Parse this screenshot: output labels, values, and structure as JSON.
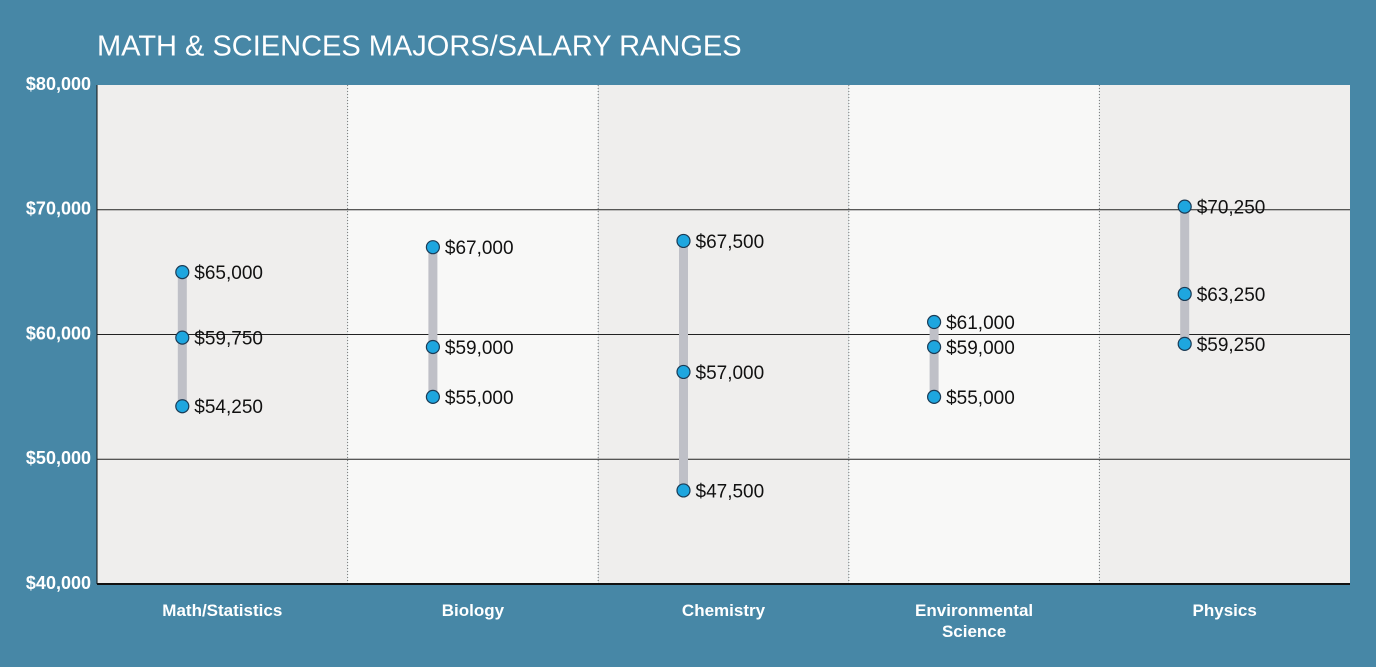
{
  "chart_data": {
    "type": "range",
    "title": "MATH & SCIENCES MAJORS/SALARY RANGES",
    "categories": [
      "Math/Statistics",
      "Biology",
      "Chemistry",
      "Environmental Science",
      "Physics"
    ],
    "series": [
      {
        "values": [
          54250,
          55000,
          47500,
          55000,
          59250
        ],
        "value_labels": [
          "$54,250",
          "$55,000",
          "$47,500",
          "$55,000",
          "$59,250"
        ]
      },
      {
        "values": [
          59750,
          59000,
          57000,
          59000,
          63250
        ],
        "value_labels": [
          "$59,750",
          "$59,000",
          "$57,000",
          "$59,000",
          "$63,250"
        ]
      },
      {
        "values": [
          65000,
          67000,
          67500,
          61000,
          70250
        ],
        "value_labels": [
          "$65,000",
          "$67,000",
          "$67,500",
          "$61,000",
          "$70,250"
        ]
      }
    ],
    "dot_color": "#1ea6df",
    "range_color": "#bfc0c7",
    "ylim": [
      40000,
      80000
    ],
    "yticks": [
      {
        "value": 40000,
        "label": "$40,000"
      },
      {
        "value": 50000,
        "label": "$50,000"
      },
      {
        "value": 60000,
        "label": "$60,000"
      },
      {
        "value": 70000,
        "label": "$70,000"
      },
      {
        "value": 80000,
        "label": "$80,000"
      }
    ],
    "grid": true
  }
}
